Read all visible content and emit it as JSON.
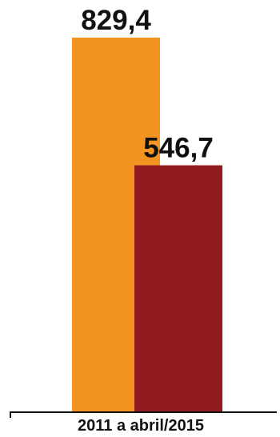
{
  "chart_data": {
    "type": "bar",
    "categories": [
      "2011 a abril/2015"
    ],
    "series": [
      {
        "values": [
          829.4
        ],
        "color": "#F39322"
      },
      {
        "values": [
          546.7
        ],
        "color": "#8F1A1F"
      }
    ],
    "data_labels": [
      "829,4",
      "546,7"
    ],
    "title": "",
    "xlabel": "",
    "ylabel": "",
    "ylim": [
      0,
      829.4
    ],
    "grid": false,
    "legend": "none"
  }
}
